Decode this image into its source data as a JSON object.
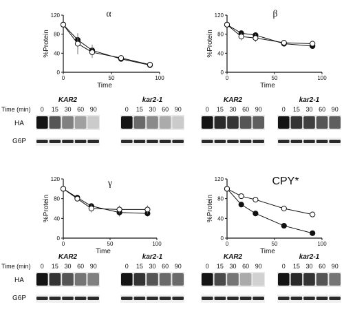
{
  "chart_data": [
    {
      "type": "line",
      "title": "α",
      "xlabel": "Time",
      "ylabel": "%Protein",
      "xlim": [
        0,
        100
      ],
      "ylim": [
        0,
        120
      ],
      "xticks": [
        "0",
        "50",
        "100"
      ],
      "yticks": [
        "0",
        "40",
        "80",
        "120"
      ],
      "series": [
        {
          "marker": "filled",
          "x": [
            0,
            15,
            30,
            60,
            90
          ],
          "y": [
            100,
            68,
            46,
            28,
            15
          ],
          "err": [
            0,
            8,
            12,
            4,
            4
          ]
        },
        {
          "marker": "open",
          "x": [
            0,
            15,
            30,
            60,
            90
          ],
          "y": [
            100,
            60,
            42,
            30,
            16
          ],
          "err": [
            0,
            22,
            12,
            4,
            4
          ]
        }
      ]
    },
    {
      "type": "line",
      "title": "β",
      "xlabel": "Time",
      "ylabel": "%Protein",
      "xlim": [
        0,
        100
      ],
      "ylim": [
        0,
        120
      ],
      "xticks": [
        "0",
        "50",
        "100"
      ],
      "yticks": [
        "0",
        "40",
        "80",
        "120"
      ],
      "series": [
        {
          "marker": "filled",
          "x": [
            0,
            15,
            30,
            60,
            90
          ],
          "y": [
            100,
            82,
            78,
            60,
            55
          ],
          "err": [
            0,
            4,
            6,
            4,
            5
          ]
        },
        {
          "marker": "open",
          "x": [
            0,
            15,
            30,
            60,
            90
          ],
          "y": [
            100,
            75,
            72,
            62,
            60
          ],
          "err": [
            0,
            8,
            8,
            6,
            6
          ]
        }
      ]
    },
    {
      "type": "line",
      "title": "γ",
      "xlabel": "Time",
      "ylabel": "%Protein",
      "xlim": [
        0,
        100
      ],
      "ylim": [
        0,
        120
      ],
      "xticks": [
        "0",
        "50",
        "100"
      ],
      "yticks": [
        "0",
        "40",
        "80",
        "120"
      ],
      "series": [
        {
          "marker": "filled",
          "x": [
            0,
            15,
            30,
            60,
            90
          ],
          "y": [
            100,
            82,
            65,
            52,
            50
          ],
          "err": [
            0,
            4,
            6,
            8,
            6
          ]
        },
        {
          "marker": "open",
          "x": [
            0,
            15,
            30,
            60,
            90
          ],
          "y": [
            100,
            80,
            60,
            58,
            58
          ],
          "err": [
            0,
            5,
            8,
            8,
            8
          ]
        }
      ]
    },
    {
      "type": "line",
      "title": "CPY*",
      "xlabel": "Time",
      "ylabel": "%Protein",
      "xlim": [
        0,
        100
      ],
      "ylim": [
        0,
        120
      ],
      "xticks": [
        "0",
        "50",
        "100"
      ],
      "yticks": [
        "0",
        "40",
        "80",
        "120"
      ],
      "series": [
        {
          "marker": "filled",
          "x": [
            0,
            15,
            30,
            60,
            90
          ],
          "y": [
            100,
            68,
            50,
            25,
            10
          ],
          "err": [
            0,
            2,
            3,
            2,
            2
          ]
        },
        {
          "marker": "open",
          "x": [
            0,
            15,
            30,
            60,
            90
          ],
          "y": [
            100,
            85,
            78,
            60,
            48
          ],
          "err": [
            0,
            3,
            3,
            3,
            3
          ]
        }
      ]
    }
  ],
  "blots": {
    "time_label": "Time (min)",
    "time_points": [
      "0",
      "15",
      "30",
      "60",
      "90"
    ],
    "row_labels": [
      "HA",
      "G6P"
    ],
    "strains": [
      "KAR2",
      "kar2-1"
    ],
    "ha_intensity": {
      "alpha": {
        "KAR2": [
          1.0,
          0.7,
          0.5,
          0.35,
          0.15
        ],
        "kar2-1": [
          1.0,
          0.6,
          0.45,
          0.3,
          0.15
        ]
      },
      "beta": {
        "KAR2": [
          1.0,
          0.9,
          0.85,
          0.7,
          0.65
        ],
        "kar2-1": [
          1.0,
          0.85,
          0.8,
          0.7,
          0.65
        ]
      },
      "gamma": {
        "KAR2": [
          1.0,
          0.85,
          0.7,
          0.55,
          0.5
        ],
        "kar2-1": [
          1.0,
          0.85,
          0.7,
          0.6,
          0.6
        ]
      },
      "cpy": {
        "KAR2": [
          1.0,
          0.75,
          0.55,
          0.3,
          0.12
        ],
        "kar2-1": [
          1.0,
          0.9,
          0.85,
          0.7,
          0.55
        ]
      }
    }
  },
  "colors": {
    "ink": "#111111",
    "blot_bg": "#e8e8e8"
  }
}
